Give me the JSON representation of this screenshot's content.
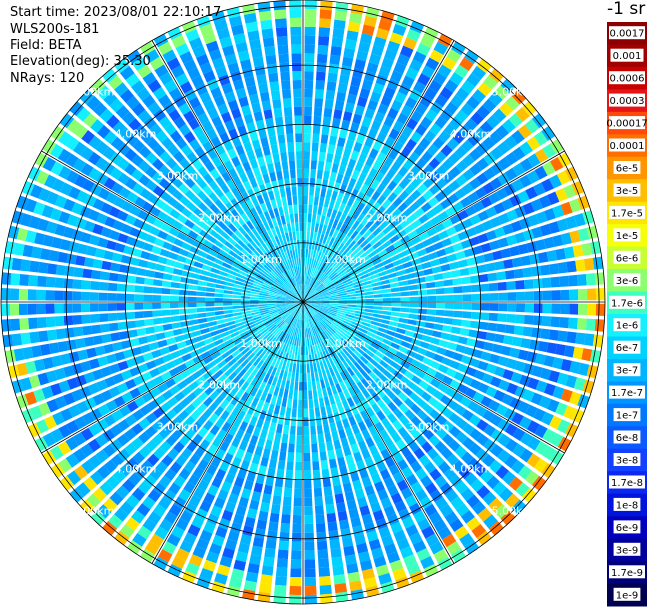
{
  "header": {
    "start_time": "Start time: 2023/08/01 22:10:17",
    "instrument": "WLS200s-181",
    "field": "Field: BETA",
    "elevation": "Elevation(deg): 35.30",
    "nrays": "NRays: 120"
  },
  "colorbar": {
    "unit_label": "-1 sr",
    "labels": [
      "0.0017",
      "0.001",
      "0.0006",
      "0.0003",
      "0.00017",
      "0.0001",
      "6e-5",
      "3e-5",
      "1.7e-5",
      "1e-5",
      "6e-6",
      "3e-6",
      "1.7e-6",
      "1e-6",
      "6e-7",
      "3e-7",
      "1.7e-7",
      "1e-7",
      "6e-8",
      "3e-8",
      "1.7e-8",
      "1e-8",
      "6e-9",
      "3e-9",
      "1.7e-9",
      "1e-9"
    ],
    "colors": [
      "#8b0000",
      "#a00000",
      "#c80000",
      "#e61414",
      "#ff4a0a",
      "#ff6e00",
      "#ff9600",
      "#ffbe00",
      "#ffe600",
      "#f5ff0a",
      "#c8ff32",
      "#8cff6e",
      "#3cffc0",
      "#14f0ff",
      "#00d2ff",
      "#00b4ff",
      "#0096ff",
      "#0078ff",
      "#0a5aff",
      "#1440ff",
      "#0a28f0",
      "#0014dc",
      "#0000be",
      "#00009a",
      "#000078",
      "#000050"
    ]
  },
  "chart_data": {
    "type": "heatmap",
    "projection": "polar-ppi",
    "title": "",
    "field": "BETA",
    "n_rays": 120,
    "elevation_deg": 35.3,
    "range_ring_labels": [
      "1.00km",
      "2.00km",
      "3.00km",
      "4.00km",
      "5.00km"
    ],
    "range_rings_km": [
      1,
      2,
      3,
      4,
      5
    ],
    "max_range_km": 5.1,
    "spokes_deg": [
      0,
      30,
      60,
      90,
      120,
      150,
      180,
      210,
      240,
      270,
      300,
      330
    ],
    "value_pattern": [
      {
        "range_km": [
          0,
          1.2
        ],
        "level": "2e-7 to 6e-7 (cyan / light blue)"
      },
      {
        "range_km": [
          1.2,
          3.0
        ],
        "level": "1e-7 to 3e-7 (cyan / sky blue)"
      },
      {
        "range_km": [
          3.0,
          4.6
        ],
        "level": "3e-8 to 1e-7 (blue)"
      },
      {
        "range_km": [
          4.6,
          5.1
        ],
        "level": "1e-7 to 1e-6 (green-yellow-orange outer band)"
      }
    ]
  }
}
